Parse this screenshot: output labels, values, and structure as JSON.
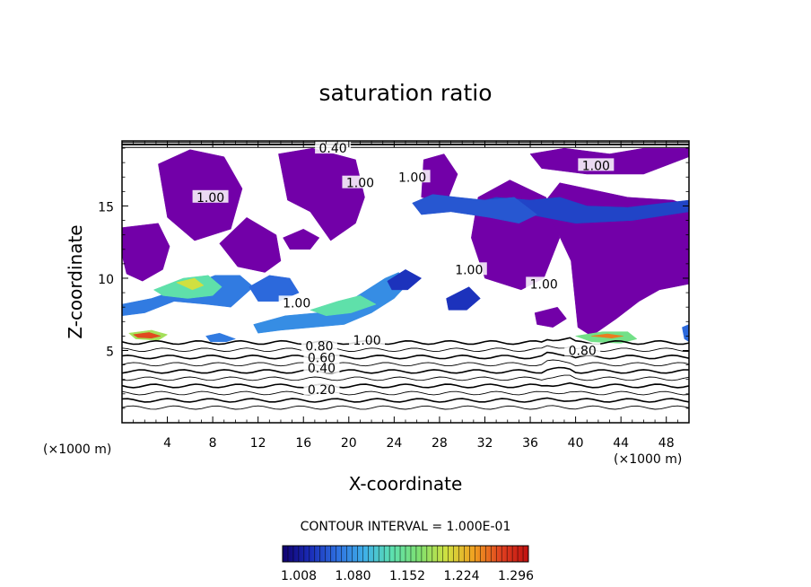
{
  "chart_data": {
    "type": "contour",
    "title": "saturation ratio",
    "xlabel": "X-coordinate",
    "ylabel": "Z-coordinate",
    "x_unit": "(×1000 m)",
    "x_unit_right": "(×1000 m)",
    "xlim": [
      0,
      50
    ],
    "ylim": [
      0,
      19.5
    ],
    "x_ticks": [
      "4",
      "8",
      "12",
      "16",
      "20",
      "24",
      "28",
      "32",
      "36",
      "40",
      "44",
      "48"
    ],
    "x_tick_values": [
      4,
      8,
      12,
      16,
      20,
      24,
      28,
      32,
      36,
      40,
      44,
      48
    ],
    "y_ticks": [
      "5",
      "10",
      "15"
    ],
    "y_tick_values": [
      5,
      10,
      15
    ],
    "contour_interval": "CONTOUR INTERVAL = 1.000E-01",
    "contour_levels": [
      0.1,
      0.2,
      0.3,
      0.4,
      0.5,
      0.6,
      0.7,
      0.8,
      0.9,
      1.0
    ],
    "contour_labels": [
      {
        "text": "0.20",
        "x": 17.6,
        "z": 2.3
      },
      {
        "text": "0.40",
        "x": 17.6,
        "z": 3.8
      },
      {
        "text": "0.60",
        "x": 17.6,
        "z": 4.5
      },
      {
        "text": "0.80",
        "x": 17.4,
        "z": 5.3
      },
      {
        "text": "1.00",
        "x": 21.6,
        "z": 5.7
      },
      {
        "text": "0.80",
        "x": 40.6,
        "z": 5.0
      },
      {
        "text": "1.00",
        "x": 15.4,
        "z": 8.3
      },
      {
        "text": "1.00",
        "x": 7.8,
        "z": 15.6
      },
      {
        "text": "1.00",
        "x": 21.0,
        "z": 16.6
      },
      {
        "text": "1.00",
        "x": 25.6,
        "z": 17.0
      },
      {
        "text": "1.00",
        "x": 30.6,
        "z": 10.6
      },
      {
        "text": "1.00",
        "x": 37.2,
        "z": 9.6
      },
      {
        "text": "1.00",
        "x": 41.8,
        "z": 17.8
      },
      {
        "text": "0.40",
        "x": 18.6,
        "z": 19.0
      }
    ],
    "fill_regions": [
      {
        "x": [
          0,
          3.2,
          4.2,
          3.6,
          1.8,
          0.4,
          0
        ],
        "z": [
          13.5,
          13.8,
          12.2,
          10.6,
          9.8,
          10.3,
          11.6
        ],
        "value": 1.01
      },
      {
        "x": [
          3.2,
          6.0,
          9.0,
          10.6,
          9.6,
          6.4,
          4.0
        ],
        "z": [
          17.9,
          18.9,
          18.4,
          16.2,
          13.4,
          12.6,
          14.2
        ],
        "value": 1.01
      },
      {
        "x": [
          8.6,
          11.0,
          13.6,
          14.0,
          12.6,
          10.2
        ],
        "z": [
          12.4,
          14.2,
          13.0,
          11.2,
          10.4,
          10.8
        ],
        "value": 1.01
      },
      {
        "x": [
          13.8,
          16.8,
          20.6,
          21.4,
          20.6,
          18.4,
          16.6,
          14.6
        ],
        "z": [
          18.6,
          19.0,
          18.2,
          15.6,
          13.8,
          12.6,
          14.6,
          15.4
        ],
        "value": 1.01
      },
      {
        "x": [
          26.6,
          28.4,
          29.6,
          28.6,
          26.4
        ],
        "z": [
          18.2,
          18.6,
          17.2,
          15.2,
          15.6
        ],
        "value": 1.01
      },
      {
        "x": [
          31.4,
          34.2,
          37.4,
          38.6,
          37.2,
          35.2,
          32.0,
          30.8
        ],
        "z": [
          15.6,
          16.8,
          15.6,
          12.8,
          10.0,
          9.2,
          10.0,
          12.8
        ],
        "value": 1.01
      },
      {
        "x": [
          37.2,
          38.6,
          41.0,
          44.6,
          48.6,
          50.0,
          50.0,
          47.4,
          45.6,
          43.6,
          41.4,
          40.2,
          39.6
        ],
        "z": [
          15.2,
          16.6,
          16.2,
          15.6,
          15.4,
          15.0,
          9.6,
          9.2,
          8.4,
          7.2,
          6.0,
          6.6,
          11.2
        ],
        "value": 1.01
      },
      {
        "x": [
          36.0,
          39.0,
          43.0,
          46.0,
          50.0,
          50.0,
          46.0,
          41.0,
          37.0
        ],
        "z": [
          18.6,
          19.0,
          18.6,
          19.0,
          19.0,
          18.4,
          17.2,
          17.2,
          17.6
        ],
        "value": 1.03
      },
      {
        "x": [
          31.0,
          33.0,
          36.0,
          38.6,
          41.0,
          44.6,
          50.0,
          50.0,
          45.0,
          40.0,
          36.0,
          33.0
        ],
        "z": [
          15.2,
          15.6,
          15.4,
          15.6,
          15.0,
          14.9,
          15.4,
          14.6,
          14.0,
          13.8,
          14.4,
          14.6
        ],
        "value": 1.05
      },
      {
        "x": [
          25.6,
          27.4,
          29.6,
          32.0,
          34.6,
          36.6,
          35.0,
          32.4,
          29.0,
          26.4
        ],
        "z": [
          15.2,
          15.8,
          15.6,
          15.4,
          15.6,
          14.4,
          13.8,
          14.2,
          14.6,
          14.4
        ],
        "value": 1.06
      },
      {
        "x": [
          0,
          2.6,
          5.6,
          8.2,
          10.4,
          11.6,
          9.6,
          7.4,
          4.6,
          2.0,
          0
        ],
        "z": [
          8.2,
          8.6,
          9.4,
          10.2,
          10.2,
          9.4,
          8.0,
          8.2,
          8.4,
          7.6,
          7.4
        ],
        "value": 1.08
      },
      {
        "x": [
          2.8,
          5.4,
          7.6,
          8.8,
          8.0,
          5.8,
          3.6
        ],
        "z": [
          9.2,
          10.0,
          10.2,
          9.4,
          8.8,
          8.6,
          8.8
        ],
        "value": 1.15
      },
      {
        "x": [
          4.8,
          6.4,
          7.2,
          6.2
        ],
        "z": [
          9.7,
          10.0,
          9.5,
          9.2
        ],
        "value": 1.22
      },
      {
        "x": [
          11.2,
          13.0,
          14.8,
          15.6,
          13.8,
          12.0
        ],
        "z": [
          9.4,
          10.2,
          10.0,
          9.0,
          8.4,
          8.4
        ],
        "value": 1.07
      },
      {
        "x": [
          11.6,
          14.4,
          17.2,
          19.6,
          21.6,
          23.2,
          24.4,
          25.2,
          24.0,
          22.0,
          19.6,
          16.8,
          14.0,
          12.0
        ],
        "z": [
          6.8,
          7.4,
          7.6,
          8.2,
          9.2,
          10.0,
          10.4,
          9.6,
          8.6,
          7.6,
          6.8,
          6.6,
          6.4,
          6.2
        ],
        "value": 1.09
      },
      {
        "x": [
          16.6,
          19.0,
          21.0,
          22.4,
          20.2,
          18.0
        ],
        "z": [
          7.8,
          8.4,
          8.8,
          8.2,
          7.6,
          7.4
        ],
        "value": 1.15
      },
      {
        "x": [
          0.6,
          2.6,
          4.0,
          3.2,
          1.2
        ],
        "z": [
          6.2,
          6.4,
          6.1,
          5.7,
          5.8
        ],
        "value": 1.2
      },
      {
        "x": [
          1.0,
          2.4,
          3.4,
          2.6,
          1.4
        ],
        "z": [
          6.1,
          6.25,
          6.0,
          5.85,
          5.9
        ],
        "value": 1.29
      },
      {
        "x": [
          7.4,
          8.6,
          10.0,
          9.2,
          7.8
        ],
        "z": [
          6.0,
          6.2,
          5.8,
          5.6,
          5.6
        ],
        "value": 1.08
      },
      {
        "x": [
          40.0,
          42.4,
          44.6,
          45.4,
          44.0,
          41.4
        ],
        "z": [
          6.0,
          6.3,
          6.3,
          5.8,
          5.5,
          5.6
        ],
        "value": 1.17
      },
      {
        "x": [
          41.4,
          42.8,
          44.2,
          43.2
        ],
        "z": [
          6.0,
          6.15,
          6.0,
          5.85
        ],
        "value": 1.27
      },
      {
        "x": [
          49.4,
          50.0,
          50.0,
          49.6
        ],
        "z": [
          6.6,
          6.8,
          5.6,
          5.8
        ],
        "value": 1.07
      },
      {
        "x": [
          23.4,
          25.0,
          26.4,
          25.2,
          23.8
        ],
        "z": [
          9.8,
          10.6,
          10.0,
          9.2,
          9.2
        ],
        "value": 1.04
      },
      {
        "x": [
          28.6,
          30.6,
          31.6,
          30.4,
          28.8
        ],
        "z": [
          8.6,
          9.4,
          8.6,
          7.8,
          7.8
        ],
        "value": 1.04
      },
      {
        "x": [
          36.4,
          38.4,
          39.2,
          38.0,
          36.6
        ],
        "z": [
          7.6,
          8.0,
          7.2,
          6.6,
          6.8
        ],
        "value": 1.03
      },
      {
        "x": [
          14.2,
          16.0,
          17.4,
          16.6,
          14.8
        ],
        "z": [
          12.8,
          13.4,
          12.8,
          12.0,
          12.0
        ],
        "value": 1.03
      }
    ],
    "colorbar": {
      "ticks": [
        "1.008",
        "1.080",
        "1.152",
        "1.224",
        "1.296"
      ],
      "min": 1.0,
      "max": 1.33,
      "stops": [
        "#10006e",
        "#1a2cb8",
        "#2e6fe0",
        "#3fb0e8",
        "#5ce0b0",
        "#7fe070",
        "#d0e040",
        "#f0a020",
        "#e04020",
        "#c01010"
      ]
    },
    "colors": {
      "fill_base": "#7200a8"
    }
  }
}
